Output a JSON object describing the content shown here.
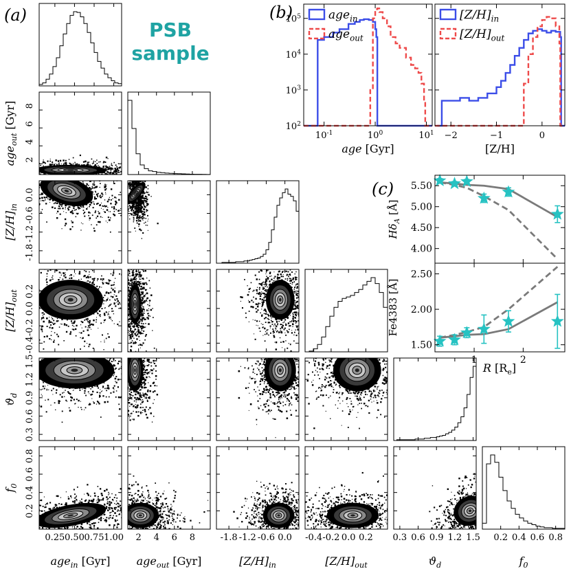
{
  "panel_labels": {
    "a": "(a)",
    "b": "(b)",
    "c": "(c)"
  },
  "title_box": {
    "line1": "PSB",
    "line2": "sample",
    "color": "#1fa3a3"
  },
  "colors": {
    "in": "#3b4de8",
    "out": "#ee4a4a",
    "star": "#26c2c2",
    "model": "#7a7a7a"
  },
  "chart_data": [
    {
      "id": "corner",
      "type": "heatmap",
      "variables": [
        {
          "key": "age_in",
          "label": "age_in [Gyr]",
          "label_main": "age",
          "label_sub": "in",
          "label_suffix": " [Gyr]",
          "range": [
            0.05,
            1.1
          ],
          "ticks": [
            0.25,
            0.5,
            0.75,
            1.0
          ],
          "tick_labels": [
            "0.25",
            "0.50",
            "0.75",
            "1.00"
          ]
        },
        {
          "key": "age_out",
          "label": "age_out [Gyr]",
          "label_main": "age",
          "label_sub": "out",
          "label_suffix": " [Gyr]",
          "range": [
            0.8,
            10
          ],
          "ticks": [
            2,
            4,
            6,
            8
          ],
          "tick_labels": [
            "2",
            "4",
            "6",
            "8"
          ]
        },
        {
          "key": "zh_in",
          "label": "[Z/H]_in",
          "label_main": "[Z/H]",
          "label_sub": "in",
          "label_suffix": "",
          "range": [
            -2.2,
            0.45
          ],
          "ticks": [
            -1.8,
            -1.2,
            -0.6,
            0.0
          ],
          "tick_labels": [
            "-1.8",
            "-1.2",
            "-0.6",
            "0.0"
          ]
        },
        {
          "key": "zh_out",
          "label": "[Z/H]_out",
          "label_main": "[Z/H]",
          "label_sub": "out",
          "label_suffix": "",
          "range": [
            -0.5,
            0.45
          ],
          "ticks": [
            -0.4,
            -0.2,
            0.0,
            0.2
          ],
          "tick_labels": [
            "-0.4",
            "-0.2",
            "0.0",
            "0.2"
          ]
        },
        {
          "key": "theta_d",
          "label": "ϑ_d",
          "label_main": "ϑ",
          "label_sub": "d",
          "label_suffix": "",
          "range": [
            0.2,
            1.55
          ],
          "ticks": [
            0.3,
            0.6,
            0.9,
            1.2,
            1.5
          ],
          "tick_labels": [
            "0.3",
            "0.6",
            "0.9",
            "1.2",
            "1.5"
          ]
        },
        {
          "key": "f0",
          "label": "f_0",
          "label_main": "f",
          "label_sub": "0",
          "label_suffix": "",
          "range": [
            0.0,
            0.9
          ],
          "ticks": [
            0.2,
            0.4,
            0.6,
            0.8
          ],
          "tick_labels": [
            "0.2",
            "0.4",
            "0.6",
            "0.8"
          ]
        }
      ],
      "histograms": [
        [
          2,
          4,
          9,
          16,
          26,
          38,
          54,
          70,
          84,
          95,
          100,
          99,
          93,
          84,
          72,
          58,
          45,
          33,
          24,
          16,
          11,
          7,
          4,
          3
        ],
        [
          100,
          62,
          28,
          13,
          8,
          5,
          4,
          3,
          2.5,
          2,
          1.6,
          1.3,
          1.1,
          0.9,
          0.7,
          0.5,
          0.4,
          0.3,
          0.2,
          0.1
        ],
        [
          0,
          0,
          1,
          1,
          1,
          1,
          1,
          2,
          2,
          2,
          3,
          3,
          4,
          5,
          6,
          7,
          9,
          12,
          18,
          28,
          45,
          62,
          78,
          88,
          95,
          100,
          93,
          90,
          84,
          70
        ],
        [
          0,
          1,
          4,
          10,
          20,
          34,
          48,
          60,
          68,
          72,
          74,
          76,
          80,
          84,
          90,
          95,
          100,
          92,
          80,
          60
        ],
        [
          0,
          1,
          1,
          1,
          1,
          1,
          1,
          2,
          2,
          2,
          3,
          3,
          4,
          4,
          5,
          6,
          7,
          9,
          11,
          14,
          18,
          24,
          32,
          44,
          62,
          85,
          100
        ],
        [
          8,
          88,
          100,
          90,
          70,
          52,
          38,
          28,
          20,
          15,
          11,
          8,
          6,
          4,
          3,
          2,
          2,
          1,
          1,
          1
        ]
      ],
      "cores": {
        "1,0": [
          [
            0.45,
            1.3,
            0.2,
            0.25,
            -0.05,
            1
          ]
        ],
        "2,0": [
          [
            0.4,
            0.12,
            0.15,
            0.22,
            -0.5,
            1
          ]
        ],
        "2,1": [
          [
            1.7,
            0.05,
            0.25,
            0.2,
            -0.3,
            1
          ]
        ],
        "3,0": [
          [
            0.45,
            0.1,
            0.18,
            0.1,
            0,
            1
          ]
        ],
        "3,1": [
          [
            1.6,
            0.05,
            0.3,
            0.1,
            0,
            1
          ]
        ],
        "3,2": [
          [
            -0.15,
            0.1,
            0.2,
            0.1,
            0,
            1
          ]
        ],
        "4,0": [
          [
            0.5,
            1.35,
            0.22,
            0.13,
            0,
            1
          ]
        ],
        "4,1": [
          [
            1.6,
            1.35,
            0.4,
            0.15,
            0,
            1
          ]
        ],
        "4,2": [
          [
            -0.15,
            1.35,
            0.22,
            0.15,
            0,
            1
          ]
        ],
        "4,3": [
          [
            0.1,
            1.35,
            0.12,
            0.15,
            0,
            1
          ]
        ],
        "5,0": [
          [
            0.45,
            0.15,
            0.2,
            0.06,
            0.55,
            1
          ]
        ],
        "5,1": [
          [
            2.2,
            0.15,
            0.9,
            0.06,
            0,
            1
          ]
        ],
        "5,2": [
          [
            -0.2,
            0.15,
            0.22,
            0.06,
            0,
            1
          ]
        ],
        "5,3": [
          [
            0.05,
            0.15,
            0.13,
            0.06,
            0,
            1
          ]
        ],
        "5,4": [
          [
            1.45,
            0.2,
            0.12,
            0.08,
            0.5,
            1
          ]
        ]
      }
    },
    {
      "id": "panel_b",
      "type": "line",
      "ylog": true,
      "ylim": [
        100,
        250000
      ],
      "yticks": [
        100,
        1000,
        10000,
        100000
      ],
      "ytick_labels": [
        [
          "10",
          "2"
        ],
        [
          "10",
          "3"
        ],
        [
          "10",
          "4"
        ],
        [
          "10",
          "5"
        ]
      ],
      "left": {
        "xlabel_main": "age",
        "xlabel_suffix": " [Gyr]",
        "xlog": true,
        "xlim": [
          0.04,
          13
        ],
        "xticks": [
          0.1,
          1,
          10
        ],
        "xtick_labels": [
          [
            "10",
            "-1"
          ],
          [
            "10",
            "0"
          ],
          [
            "10",
            "1"
          ]
        ],
        "series": [
          {
            "name": "age_in",
            "name_main": "age",
            "name_sub": "in",
            "x": [
              0.04,
              0.07,
              0.075,
              0.1,
              0.15,
              0.2,
              0.3,
              0.4,
              0.5,
              0.6,
              0.75,
              0.9,
              1.0,
              1.05,
              1.1,
              13
            ],
            "y": [
              100,
              100,
              25000,
              30000,
              40000,
              50000,
              70000,
              80000,
              90000,
              95000,
              90000,
              80000,
              50000,
              30000,
              100,
              100
            ]
          },
          {
            "name": "age_out",
            "name_main": "age",
            "name_sub": "out",
            "x": [
              0.04,
              0.75,
              0.8,
              0.9,
              1.0,
              1.1,
              1.2,
              1.4,
              1.7,
              2.0,
              2.5,
              3.0,
              4.0,
              5.0,
              6.0,
              7.0,
              8.0,
              9.0,
              9.5,
              13
            ],
            "y": [
              100,
              100,
              1000,
              100000,
              180000,
              190000,
              150000,
              100000,
              60000,
              30000,
              20000,
              15000,
              8000,
              5000,
              4000,
              3000,
              1500,
              500,
              100,
              100
            ]
          }
        ]
      },
      "right": {
        "xlabel": "[Z/H]",
        "xlim": [
          -2.35,
          0.5
        ],
        "xticks": [
          -2,
          -1,
          0
        ],
        "xtick_labels": [
          "−2",
          "−1",
          "0"
        ],
        "series": [
          {
            "name": "[Z/H]_in",
            "name_main": "[Z/H]",
            "name_sub": "in",
            "x": [
              -2.3,
              -2.2,
              -2.0,
              -1.8,
              -1.6,
              -1.4,
              -1.2,
              -1.0,
              -0.9,
              -0.8,
              -0.7,
              -0.6,
              -0.5,
              -0.4,
              -0.3,
              -0.2,
              -0.1,
              0.0,
              0.1,
              0.2,
              0.3,
              0.4,
              0.42,
              0.5
            ],
            "y": [
              100,
              500,
              500,
              600,
              500,
              600,
              800,
              1200,
              1800,
              3000,
              5000,
              9000,
              15000,
              25000,
              38000,
              45000,
              50000,
              45000,
              40000,
              45000,
              42000,
              30000,
              100,
              100
            ]
          },
          {
            "name": "[Z/H]_out",
            "name_main": "[Z/H]",
            "name_sub": "out",
            "x": [
              -2.35,
              -0.45,
              -0.4,
              -0.3,
              -0.2,
              -0.1,
              0.0,
              0.1,
              0.2,
              0.3,
              0.38,
              0.4,
              0.5
            ],
            "y": [
              100,
              100,
              1500,
              10000,
              30000,
              60000,
              90000,
              110000,
              100000,
              60000,
              20000,
              100,
              100
            ]
          }
        ]
      }
    },
    {
      "id": "panel_c_top",
      "type": "line",
      "ylabel": "HδA [Å]",
      "ylabel_main": "Hδ",
      "ylabel_sub": "A",
      "ylabel_suffix": " [Å]",
      "xlim": [
        0.2,
        2.85
      ],
      "ylim": [
        3.65,
        5.75
      ],
      "xticks": [
        1,
        2
      ],
      "yticks": [
        4.0,
        4.5,
        5.0,
        5.5
      ],
      "ytick_labels": [
        "4.00",
        "4.50",
        "5.00",
        "5.50"
      ],
      "data": {
        "x": [
          0.3,
          0.6,
          0.85,
          1.2,
          1.7,
          2.7
        ],
        "y": [
          5.62,
          5.55,
          5.6,
          5.2,
          5.35,
          4.82
        ],
        "err": [
          0.05,
          0.05,
          0.05,
          0.1,
          0.1,
          0.2
        ]
      },
      "model_solid": {
        "x": [
          0.3,
          0.6,
          0.85,
          1.2,
          1.7,
          2.7
        ],
        "y": [
          5.58,
          5.55,
          5.52,
          5.5,
          5.42,
          4.75
        ]
      },
      "model_dashed": {
        "x": [
          0.3,
          0.6,
          0.85,
          1.2,
          1.7,
          2.7
        ],
        "y": [
          5.58,
          5.52,
          5.45,
          5.25,
          4.92,
          3.75
        ]
      }
    },
    {
      "id": "panel_c_bottom",
      "type": "line",
      "ylabel": "Fe4383 [Å]",
      "xlabel": "R [Re]",
      "xlabel_main": "R",
      "xlabel_suffix": " [R",
      "xlabel_sub": "e",
      "xlabel_end": "]",
      "xlim": [
        0.2,
        2.85
      ],
      "ylim": [
        1.4,
        2.65
      ],
      "xticks": [
        1,
        2
      ],
      "yticks": [
        1.5,
        2.0,
        2.5
      ],
      "ytick_labels": [
        "1.50",
        "2.00",
        "2.50"
      ],
      "data": {
        "x": [
          0.3,
          0.6,
          0.85,
          1.2,
          1.7,
          2.7
        ],
        "y": [
          1.55,
          1.57,
          1.67,
          1.72,
          1.83,
          1.83
        ],
        "err": [
          0.07,
          0.07,
          0.07,
          0.2,
          0.15,
          0.38
        ]
      },
      "model_solid": {
        "x": [
          0.3,
          0.6,
          0.85,
          1.2,
          1.7,
          2.7
        ],
        "y": [
          1.6,
          1.62,
          1.64,
          1.65,
          1.72,
          2.1
        ]
      },
      "model_dashed": {
        "x": [
          0.3,
          0.6,
          0.85,
          1.2,
          1.7,
          2.7
        ],
        "y": [
          1.6,
          1.64,
          1.68,
          1.75,
          2.0,
          2.6
        ]
      }
    }
  ]
}
